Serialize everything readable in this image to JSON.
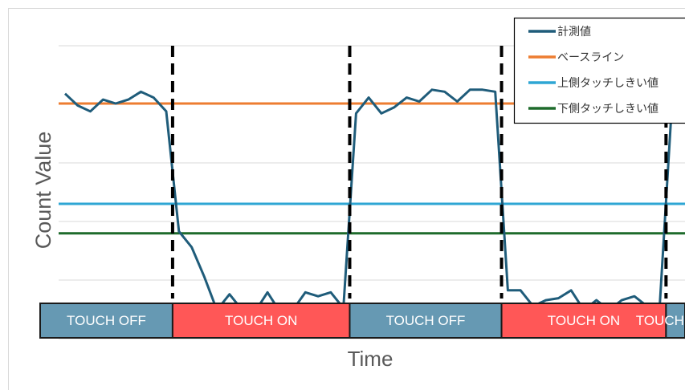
{
  "chart_data": {
    "type": "line",
    "xlabel": "Time",
    "ylabel": "Count Value",
    "grid": true,
    "legend_position": "top-right",
    "series": [
      {
        "name": "計測値",
        "color": "#1F5C7A",
        "values": [
          0.88,
          0.82,
          0.79,
          0.85,
          0.83,
          0.85,
          0.89,
          0.86,
          0.79,
          0.18,
          0.1,
          -0.05,
          -0.22,
          -0.14,
          -0.22,
          -0.23,
          -0.13,
          -0.23,
          -0.22,
          -0.13,
          -0.15,
          -0.13,
          -0.21,
          0.78,
          0.86,
          0.78,
          0.81,
          0.86,
          0.84,
          0.9,
          0.89,
          0.84,
          0.9,
          0.9,
          0.89,
          -0.12,
          -0.12,
          -0.2,
          -0.17,
          -0.16,
          -0.12,
          -0.22,
          -0.17,
          -0.22,
          -0.17,
          -0.15,
          -0.2,
          -0.2,
          0.86,
          0.84
        ]
      },
      {
        "name": "ベースライン",
        "color": "#ED7D31",
        "constant": 0.83
      },
      {
        "name": "上側タッチしきい値",
        "color": "#2EA6D4",
        "constant": 0.32
      },
      {
        "name": "下側タッチしきい値",
        "color": "#1E6B2B",
        "constant": 0.17
      }
    ],
    "transitions": [
      9,
      23,
      35,
      48
    ],
    "state_bands": [
      {
        "label": "TOUCH OFF",
        "state": "off"
      },
      {
        "label": "TOUCH ON",
        "state": "on"
      },
      {
        "label": "TOUCH OFF",
        "state": "off"
      },
      {
        "label": "TOUCH ON",
        "state": "on"
      },
      {
        "label": "TOUCH OFF",
        "state": "off"
      }
    ],
    "colors": {
      "off": "#6699B3",
      "on": "#FF5757"
    }
  }
}
